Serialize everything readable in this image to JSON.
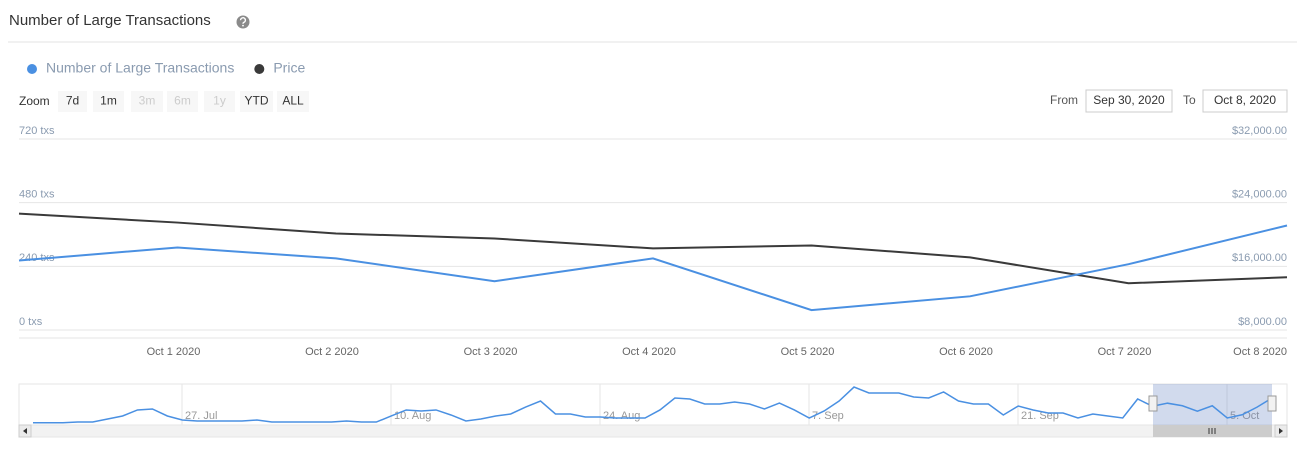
{
  "header": {
    "title": "Number of Large Transactions"
  },
  "zoom": {
    "label": "Zoom",
    "buttons": [
      {
        "label": "7d",
        "enabled": true
      },
      {
        "label": "1m",
        "enabled": true
      },
      {
        "label": "3m",
        "enabled": false
      },
      {
        "label": "6m",
        "enabled": false
      },
      {
        "label": "1y",
        "enabled": false
      },
      {
        "label": "YTD",
        "enabled": true
      },
      {
        "label": "ALL",
        "enabled": true
      }
    ]
  },
  "range": {
    "from_label": "From",
    "from": "Sep 30, 2020",
    "to_label": "To",
    "to": "Oct 8, 2020"
  },
  "chart_data": {
    "type": "line",
    "categories": [
      null,
      "Oct 1 2020",
      "Oct 2 2020",
      "Oct 3 2020",
      "Oct 4 2020",
      "Oct 5 2020",
      "Oct 6 2020",
      "Oct 7 2020",
      "Oct 8 2020"
    ],
    "series": [
      {
        "name": "Number of Large Transactions",
        "color": "#4a90e2",
        "values": [
          262,
          311,
          270,
          184,
          270,
          75,
          127,
          248,
          394
        ]
      },
      {
        "name": "Price",
        "color": "#3a3a3a",
        "axis": "y2",
        "values": [
          22625,
          21500,
          20125,
          19500,
          18250,
          18625,
          17125,
          13875,
          14625
        ]
      }
    ],
    "ylim": [
      0,
      720
    ],
    "yticks": [
      {
        "value": 0,
        "label": "0 txs"
      },
      {
        "value": 240,
        "label": "240 txs"
      },
      {
        "value": 480,
        "label": "480 txs"
      },
      {
        "value": 720,
        "label": "720 txs"
      }
    ],
    "y2lim": [
      8000,
      32000
    ],
    "y2ticks": [
      {
        "value": 8000,
        "label": "$8,000.00"
      },
      {
        "value": 16000,
        "label": "$16,000.00"
      },
      {
        "value": 24000,
        "label": "$24,000.00"
      },
      {
        "value": 32000,
        "label": "$32,000.00"
      }
    ],
    "grid": true
  },
  "navigator": {
    "color": "#4a90e2",
    "labels": [
      "27. Jul",
      "10. Aug",
      "24. Aug",
      "7. Sep",
      "21. Sep",
      "5. Oct"
    ],
    "values": [
      0,
      0,
      0,
      11,
      11,
      59,
      107,
      203,
      219,
      107,
      43,
      27,
      27,
      27,
      27,
      43,
      11,
      11,
      11,
      11,
      11,
      27,
      11,
      11,
      107,
      203,
      187,
      203,
      123,
      27,
      59,
      107,
      139,
      250,
      346,
      139,
      139,
      91,
      91,
      75,
      75,
      75,
      203,
      394,
      378,
      298,
      298,
      330,
      298,
      219,
      314,
      203,
      75,
      187,
      346,
      569,
      474,
      474,
      474,
      410,
      394,
      490,
      346,
      298,
      298,
      123,
      266,
      203,
      155,
      155,
      75,
      139,
      107,
      75,
      378,
      262,
      311,
      270,
      184,
      270,
      75,
      127,
      248,
      394
    ]
  }
}
